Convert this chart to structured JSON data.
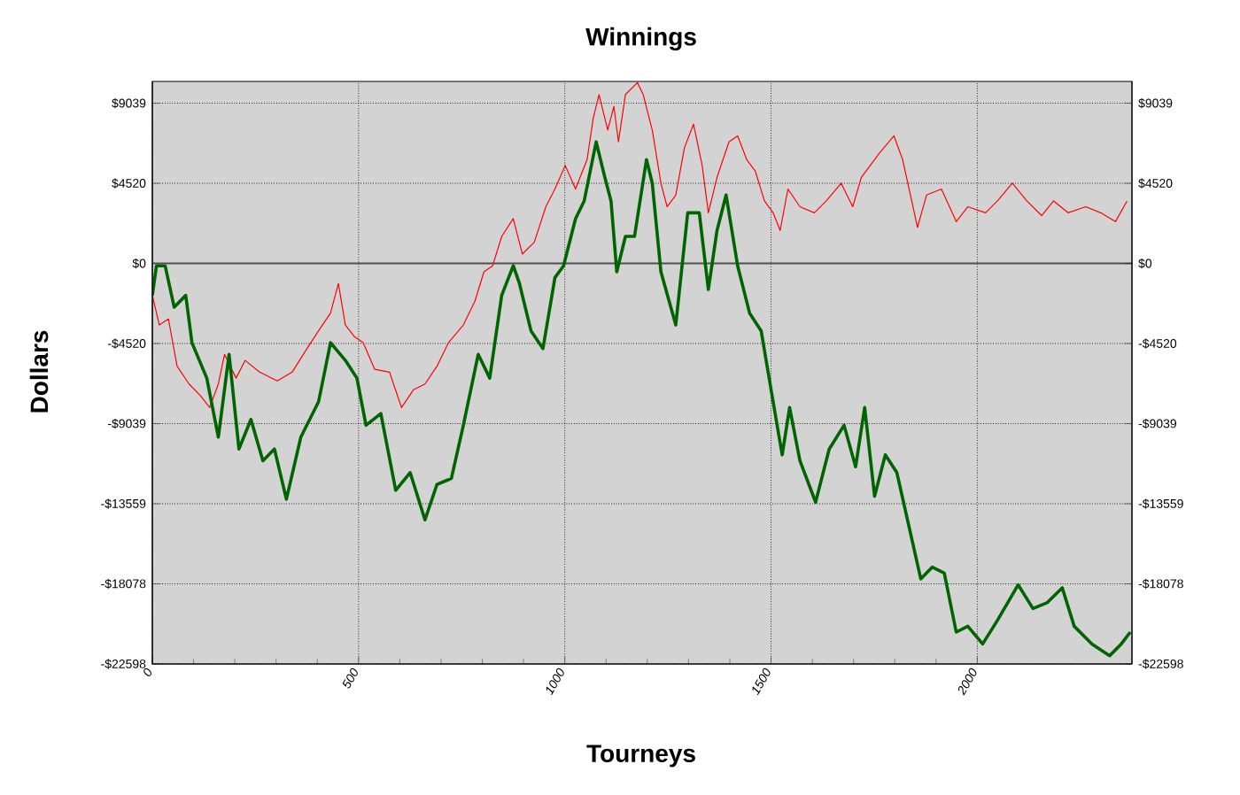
{
  "chart_data": {
    "type": "line",
    "title": "Winnings",
    "xlabel": "Tourneys",
    "ylabel": "Dollars",
    "xlim": [
      0,
      2375
    ],
    "xticks": [
      0,
      500,
      1000,
      1500,
      2000
    ],
    "ylim": [
      -22598,
      10270
    ],
    "yticks": [
      {
        "value": 9039,
        "label": "$9039"
      },
      {
        "value": 4520,
        "label": "$4520"
      },
      {
        "value": 0,
        "label": "$0"
      },
      {
        "value": -4520,
        "label": "-$4520"
      },
      {
        "value": -9039,
        "label": "-$9039"
      },
      {
        "value": -13559,
        "label": "-$13559"
      },
      {
        "value": -18078,
        "label": "-$18078"
      },
      {
        "value": -22598,
        "label": "-$22598"
      }
    ],
    "y2lim": [
      -22598,
      10270
    ],
    "y2ticks": [
      {
        "value": 9039,
        "label": "$9039"
      },
      {
        "value": 4520,
        "label": "$4520"
      },
      {
        "value": 0,
        "label": "$0"
      },
      {
        "value": -4520,
        "label": "-$4520"
      },
      {
        "value": -9039,
        "label": "-$9039"
      },
      {
        "value": -13559,
        "label": "-$13559"
      },
      {
        "value": -18078,
        "label": "-$18078"
      },
      {
        "value": -22598,
        "label": "-$22598"
      }
    ],
    "grid": true,
    "marker": "none",
    "line_style": "solid",
    "ref_lines": [
      {
        "axis": "y",
        "value": 0,
        "color": "#505050"
      }
    ],
    "series": [
      {
        "color": "#ff0000",
        "x": [
          0,
          17,
          39,
          60,
          89,
          117,
          139,
          160,
          175,
          203,
          225,
          260,
          303,
          339,
          375,
          403,
          432,
          451,
          468,
          490,
          511,
          539,
          575,
          604,
          633,
          661,
          690,
          718,
          754,
          782,
          804,
          825,
          847,
          875,
          897,
          926,
          954,
          976,
          1001,
          1026,
          1054,
          1069,
          1083,
          1104,
          1119,
          1130,
          1147,
          1176,
          1190,
          1212,
          1233,
          1248,
          1269,
          1290,
          1312,
          1333,
          1348,
          1369,
          1398,
          1419,
          1441,
          1462,
          1484,
          1505,
          1522,
          1541,
          1570,
          1605,
          1634,
          1670,
          1698,
          1719,
          1762,
          1798,
          1819,
          1841,
          1855,
          1877,
          1913,
          1949,
          1977,
          2020,
          2049,
          2085,
          2120,
          2156,
          2185,
          2220,
          2263,
          2299,
          2335,
          2363
        ],
        "values": [
          -1800,
          -3470,
          -3130,
          -5800,
          -6800,
          -7470,
          -8130,
          -6800,
          -5130,
          -6470,
          -5470,
          -6130,
          -6630,
          -6130,
          -4800,
          -3800,
          -2800,
          -1130,
          -3470,
          -4130,
          -4470,
          -5970,
          -6130,
          -8130,
          -7130,
          -6800,
          -5800,
          -4470,
          -3470,
          -2130,
          -470,
          -130,
          1530,
          2530,
          530,
          1200,
          3200,
          4200,
          5530,
          4200,
          5860,
          8200,
          9530,
          7530,
          8860,
          6860,
          9530,
          10200,
          9530,
          7530,
          4530,
          3200,
          3860,
          6530,
          7860,
          5530,
          2860,
          4860,
          6860,
          7200,
          5860,
          5200,
          3530,
          2860,
          1860,
          4200,
          3200,
          2860,
          3530,
          4530,
          3200,
          4860,
          6200,
          7200,
          5860,
          3530,
          2030,
          3860,
          4200,
          2360,
          3200,
          2860,
          3530,
          4530,
          3530,
          2700,
          3530,
          2860,
          3200,
          2860,
          2360,
          3530
        ]
      },
      {
        "color": "#006400",
        "x": [
          0,
          10,
          31,
          53,
          81,
          96,
          132,
          160,
          186,
          210,
          239,
          268,
          296,
          325,
          360,
          403,
          432,
          468,
          496,
          518,
          554,
          590,
          625,
          661,
          690,
          725,
          754,
          790,
          818,
          847,
          875,
          890,
          918,
          947,
          976,
          997,
          1026,
          1047,
          1076,
          1097,
          1112,
          1126,
          1147,
          1169,
          1198,
          1212,
          1233,
          1269,
          1298,
          1326,
          1348,
          1369,
          1391,
          1419,
          1448,
          1476,
          1505,
          1527,
          1545,
          1570,
          1608,
          1641,
          1677,
          1705,
          1727,
          1751,
          1777,
          1805,
          1834,
          1863,
          1891,
          1920,
          1949,
          1977,
          2013,
          2049,
          2099,
          2135,
          2170,
          2206,
          2235,
          2278,
          2321,
          2349,
          2371
        ],
        "values": [
          -1800,
          -130,
          -130,
          -2470,
          -1800,
          -4470,
          -6470,
          -9800,
          -5130,
          -10470,
          -8800,
          -11130,
          -10470,
          -13300,
          -9800,
          -7800,
          -4470,
          -5470,
          -6470,
          -9130,
          -8470,
          -12800,
          -11800,
          -14470,
          -12470,
          -12130,
          -9130,
          -5130,
          -6470,
          -1800,
          -130,
          -1130,
          -3800,
          -4800,
          -800,
          -130,
          2530,
          3530,
          6860,
          4860,
          3530,
          -470,
          1530,
          1530,
          5860,
          4530,
          -470,
          -3470,
          2860,
          2860,
          -1470,
          1860,
          3860,
          -130,
          -2800,
          -3800,
          -7800,
          -10800,
          -8130,
          -11130,
          -13470,
          -10470,
          -9130,
          -11470,
          -8130,
          -13130,
          -10800,
          -11800,
          -14800,
          -17800,
          -17130,
          -17470,
          -20800,
          -20470,
          -21470,
          -20130,
          -18130,
          -19470,
          -19130,
          -18300,
          -20470,
          -21470,
          -22130,
          -21470,
          -20800
        ]
      }
    ]
  }
}
